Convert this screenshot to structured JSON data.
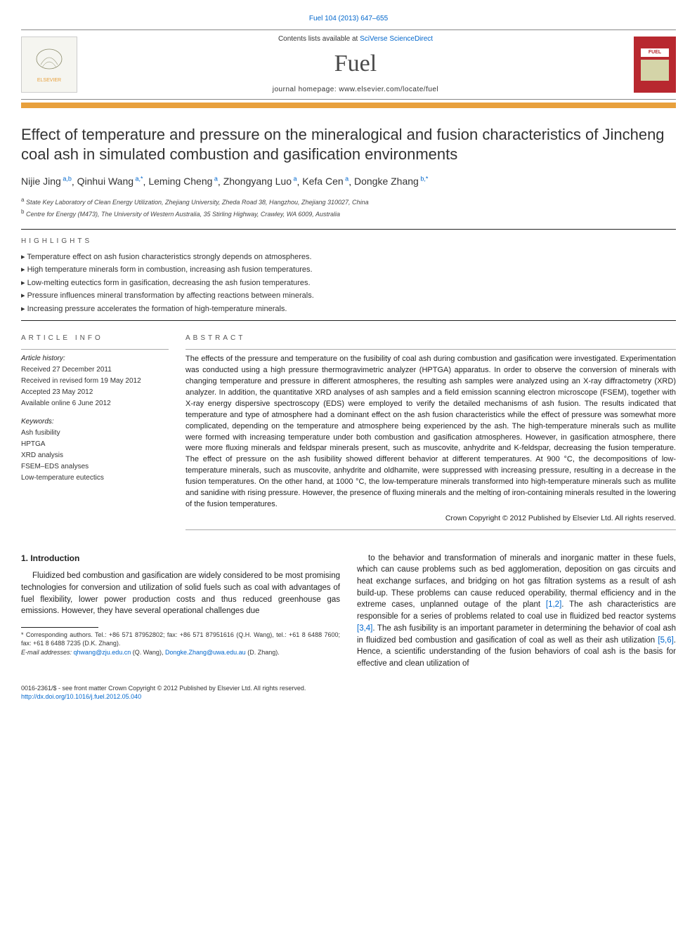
{
  "journalInfo": "Fuel 104 (2013) 647–655",
  "header": {
    "contents": "Contents lists available at",
    "contentsLink": "SciVerse ScienceDirect",
    "journalName": "Fuel",
    "homepage": "journal homepage: www.elsevier.com/locate/fuel",
    "elsevierLabel": "ELSEVIER",
    "coverLabel": "FUEL"
  },
  "title": "Effect of temperature and pressure on the mineralogical and fusion characteristics of Jincheng coal ash in simulated combustion and gasification environments",
  "authors": [
    {
      "name": "Nijie Jing",
      "sup": "a,b"
    },
    {
      "name": "Qinhui Wang",
      "sup": "a,*"
    },
    {
      "name": "Leming Cheng",
      "sup": "a"
    },
    {
      "name": "Zhongyang Luo",
      "sup": "a"
    },
    {
      "name": "Kefa Cen",
      "sup": "a"
    },
    {
      "name": "Dongke Zhang",
      "sup": "b,*"
    }
  ],
  "affiliations": [
    {
      "sup": "a",
      "text": "State Key Laboratory of Clean Energy Utilization, Zhejiang University, Zheda Road 38, Hangzhou, Zhejiang 310027, China"
    },
    {
      "sup": "b",
      "text": "Centre for Energy (M473), The University of Western Australia, 35 Stirling Highway, Crawley, WA 6009, Australia"
    }
  ],
  "highlights": {
    "title": "HIGHLIGHTS",
    "items": [
      "Temperature effect on ash fusion characteristics strongly depends on atmospheres.",
      "High temperature minerals form in combustion, increasing ash fusion temperatures.",
      "Low-melting eutectics form in gasification, decreasing the ash fusion temperatures.",
      "Pressure influences mineral transformation by affecting reactions between minerals.",
      "Increasing pressure accelerates the formation of high-temperature minerals."
    ]
  },
  "articleInfo": {
    "title": "ARTICLE INFO",
    "history": {
      "label": "Article history:",
      "received": "Received 27 December 2011",
      "revised": "Received in revised form 19 May 2012",
      "accepted": "Accepted 23 May 2012",
      "online": "Available online 6 June 2012"
    },
    "keywordsLabel": "Keywords:",
    "keywords": [
      "Ash fusibility",
      "HPTGA",
      "XRD analysis",
      "FSEM–EDS analyses",
      "Low-temperature eutectics"
    ]
  },
  "abstract": {
    "title": "ABSTRACT",
    "text": "The effects of the pressure and temperature on the fusibility of coal ash during combustion and gasification were investigated. Experimentation was conducted using a high pressure thermogravimetric analyzer (HPTGA) apparatus. In order to observe the conversion of minerals with changing temperature and pressure in different atmospheres, the resulting ash samples were analyzed using an X-ray diffractometry (XRD) analyzer. In addition, the quantitative XRD analyses of ash samples and a field emission scanning electron microscope (FSEM), together with X-ray energy dispersive spectroscopy (EDS) were employed to verify the detailed mechanisms of ash fusion. The results indicated that temperature and type of atmosphere had a dominant effect on the ash fusion characteristics while the effect of pressure was somewhat more complicated, depending on the temperature and atmosphere being experienced by the ash. The high-temperature minerals such as mullite were formed with increasing temperature under both combustion and gasification atmospheres. However, in gasification atmosphere, there were more fluxing minerals and feldspar minerals present, such as muscovite, anhydrite and K-feldspar, decreasing the fusion temperature. The effect of pressure on the ash fusibility showed different behavior at different temperatures. At 900 °C, the decompositions of low-temperature minerals, such as muscovite, anhydrite and oldhamite, were suppressed with increasing pressure, resulting in a decrease in the fusion temperatures. On the other hand, at 1000 °C, the low-temperature minerals transformed into high-temperature minerals such as mullite and sanidine with rising pressure. However, the presence of fluxing minerals and the melting of iron-containing minerals resulted in the lowering of the fusion temperatures.",
    "copyright": "Crown Copyright © 2012 Published by Elsevier Ltd. All rights reserved."
  },
  "intro": {
    "title": "1. Introduction",
    "leftText": "Fluidized bed combustion and gasification are widely considered to be most promising technologies for conversion and utilization of solid fuels such as coal with advantages of fuel flexibility, lower power production costs and thus reduced greenhouse gas emissions. However, they have several operational challenges due",
    "rightText": "to the behavior and transformation of minerals and inorganic matter in these fuels, which can cause problems such as bed agglomeration, deposition on gas circuits and heat exchange surfaces, and bridging on hot gas filtration systems as a result of ash build-up. These problems can cause reduced operability, thermal efficiency and in the extreme cases, unplanned outage of the plant [1,2]. The ash characteristics are responsible for a series of problems related to coal use in fluidized bed reactor systems [3,4]. The ash fusibility is an important parameter in determining the behavior of coal ash in fluidized bed combustion and gasification of coal as well as their ash utilization [5,6]. Hence, a scientific understanding of the fusion behaviors of coal ash is the basis for effective and clean utilization of"
  },
  "footnotes": {
    "corresponding": "* Corresponding authors. Tel.: +86 571 87952802; fax: +86 571 87951616 (Q.H. Wang), tel.: +61 8 6488 7600; fax: +61 8 6488 7235 (D.K. Zhang).",
    "emailLabel": "E-mail addresses:",
    "email1": "qhwang@zju.edu.cn",
    "email1Who": "(Q. Wang),",
    "email2": "Dongke.Zhang@uwa.edu.au",
    "email2Who": "(D. Zhang)."
  },
  "bottom": {
    "line1": "0016-2361/$ - see front matter Crown Copyright © 2012 Published by Elsevier Ltd. All rights reserved.",
    "doi": "http://dx.doi.org/10.1016/j.fuel.2012.05.040"
  },
  "colors": {
    "link": "#0066cc",
    "orangeBar": "#e8a03c",
    "coverBg": "#b8282f"
  }
}
